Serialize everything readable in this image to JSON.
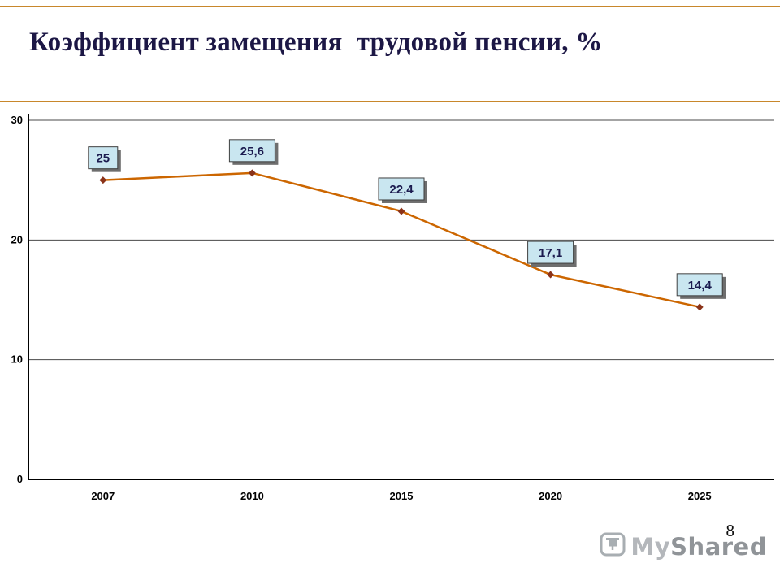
{
  "slide": {
    "title": "Коэффициент замещения  трудовой пенсии, %",
    "page_number": "8",
    "watermark": {
      "part1": "My",
      "part2": "Shared",
      "icon": "presentation-screen-icon"
    }
  },
  "chart_data": {
    "type": "line",
    "title": "Коэффициент замещения  трудовой пенсии, %",
    "categories": [
      "2007",
      "2010",
      "2015",
      "2020",
      "2025"
    ],
    "values": [
      25,
      25.6,
      22.4,
      17.1,
      14.4
    ],
    "point_labels": [
      "25",
      "25,6",
      "22,4",
      "17,1",
      "14,4"
    ],
    "xlabel": "",
    "ylabel": "",
    "ylim": [
      0,
      30
    ],
    "yticks": [
      0,
      10,
      20,
      30
    ],
    "grid": true,
    "legend": false,
    "colors": {
      "line": "#cc6600",
      "marker": "#8b3319",
      "label_box_fill": "#c9e6f0",
      "label_box_shadow": "#6e6e6e",
      "label_box_border": "#3f3f3f",
      "label_text": "#1b1b4f",
      "axis": "#000000",
      "grid_line": "#4a4a4a",
      "title_text": "#1c1745",
      "rule": "#c8872b",
      "watermark": "#8e959b"
    }
  }
}
